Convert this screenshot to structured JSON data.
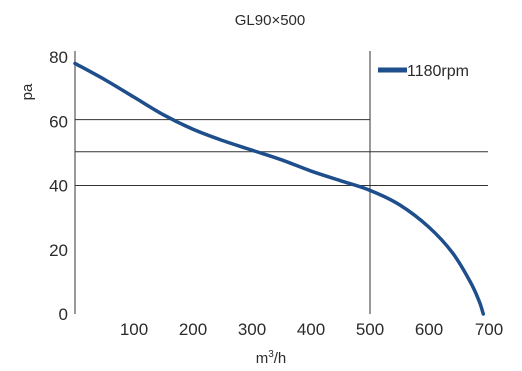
{
  "chart_data": {
    "type": "line",
    "title": "GL90×500",
    "xlabel": "m³/h",
    "xlabel_base": "m",
    "xlabel_sup": "3",
    "xlabel_tail": "/h",
    "ylabel": "pa",
    "xlim": [
      0,
      700
    ],
    "ylim": [
      0,
      80
    ],
    "x_ticks": [
      "100",
      "200",
      "300",
      "400",
      "500",
      "600",
      "700"
    ],
    "x_tick_values": [
      100,
      200,
      300,
      400,
      500,
      600,
      700
    ],
    "y_ticks": [
      "0",
      "20",
      "40",
      "60",
      "80"
    ],
    "y_tick_values": [
      0,
      20,
      40,
      60,
      80
    ],
    "grid": false,
    "legend_position": "top-right",
    "series": [
      {
        "name": "1180rpm",
        "color": "#1f4e8c",
        "x": [
          0,
          50,
          100,
          150,
          200,
          250,
          300,
          350,
          400,
          450,
          500,
          550,
          600,
          640,
          670,
          685,
          692
        ],
        "y": [
          78,
          73,
          67.5,
          62,
          57.5,
          54,
          51,
          48,
          44.5,
          41.5,
          38.5,
          34,
          27,
          19,
          10,
          4,
          0
        ]
      }
    ],
    "reference_lines": [
      {
        "orientation": "horizontal",
        "y": 60.5,
        "x_from": 0,
        "x_to": 500
      },
      {
        "orientation": "horizontal",
        "y": 50.5,
        "x_from": 0,
        "x_to": 700
      },
      {
        "orientation": "horizontal",
        "y": 40,
        "x_from": 0,
        "x_to": 700
      },
      {
        "orientation": "vertical",
        "x": 500,
        "y_from": 0,
        "y_to": 80
      }
    ],
    "colors": {
      "series": "#1f4e8c",
      "reference": "#333333",
      "axis": "#333333"
    }
  }
}
